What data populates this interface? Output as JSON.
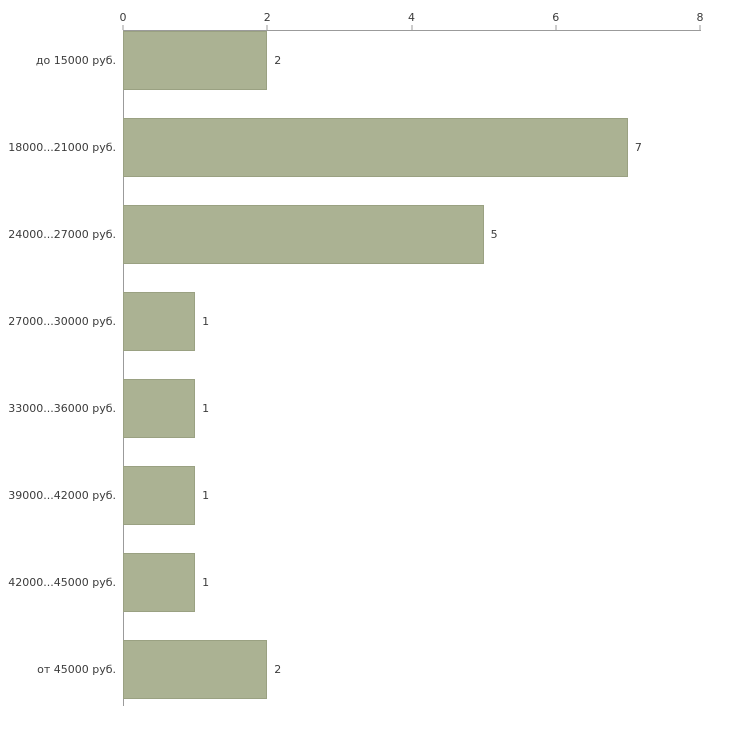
{
  "chart_data": {
    "type": "bar",
    "orientation": "horizontal",
    "title": "",
    "xlabel": "",
    "ylabel": "",
    "categories": [
      "до 15000 руб.",
      "18000...21000 руб.",
      "24000...27000 руб.",
      "27000...30000 руб.",
      "33000...36000 руб.",
      "39000...42000 руб.",
      "42000...45000 руб.",
      "от 45000 руб."
    ],
    "values": [
      2,
      7,
      5,
      1,
      1,
      1,
      1,
      2
    ],
    "value_labels": [
      "2",
      "7",
      "5",
      "1",
      "1",
      "1",
      "1",
      "2"
    ],
    "xlim": [
      0,
      8
    ],
    "x_ticks": [
      0,
      2,
      4,
      6,
      8
    ],
    "axis_position": "top",
    "grid": false,
    "legend": false,
    "bar_color": "#abb293",
    "bar_border_color": "#9aa182",
    "axis_color": "#9b9b9b",
    "text_color": "#3c3c3c",
    "background_color": "#ffffff"
  }
}
